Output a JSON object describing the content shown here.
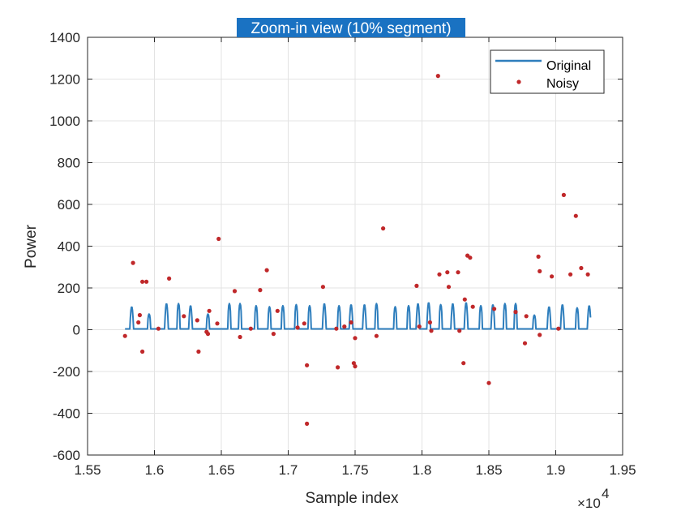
{
  "chart_data": {
    "type": "line",
    "title": "Zoom-in view (10% segment)",
    "xlabel": "Sample index",
    "ylabel": "Power",
    "x_exponent_label": "×10",
    "x_exponent_power": "4",
    "xlim": [
      15500,
      19500
    ],
    "ylim": [
      -600,
      1400
    ],
    "xticks": [
      15500,
      16000,
      16500,
      17000,
      17500,
      18000,
      18500,
      19000,
      19500
    ],
    "xtick_labels": [
      "1.55",
      "1.6",
      "1.65",
      "1.7",
      "1.75",
      "1.8",
      "1.85",
      "1.9",
      "1.95"
    ],
    "yticks": [
      -600,
      -400,
      -200,
      0,
      200,
      400,
      600,
      800,
      1000,
      1200,
      1400
    ],
    "ytick_labels": [
      "-600",
      "-400",
      "-200",
      "0",
      "200",
      "400",
      "600",
      "800",
      "1000",
      "1200",
      "1400"
    ],
    "grid": true,
    "legend_position": "top-right",
    "series": [
      {
        "name": "Original",
        "kind": "line",
        "color": "#2e7ebd",
        "x_start": 15780,
        "x_end": 19260,
        "peaks": [
          {
            "x": 15830,
            "y": 110
          },
          {
            "x": 15960,
            "y": 75
          },
          {
            "x": 16090,
            "y": 125
          },
          {
            "x": 16180,
            "y": 125
          },
          {
            "x": 16270,
            "y": 115
          },
          {
            "x": 16400,
            "y": 75
          },
          {
            "x": 16560,
            "y": 125
          },
          {
            "x": 16640,
            "y": 125
          },
          {
            "x": 16760,
            "y": 115
          },
          {
            "x": 16860,
            "y": 110
          },
          {
            "x": 16960,
            "y": 115
          },
          {
            "x": 17060,
            "y": 120
          },
          {
            "x": 17160,
            "y": 115
          },
          {
            "x": 17270,
            "y": 125
          },
          {
            "x": 17380,
            "y": 115
          },
          {
            "x": 17470,
            "y": 120
          },
          {
            "x": 17570,
            "y": 120
          },
          {
            "x": 17660,
            "y": 125
          },
          {
            "x": 17800,
            "y": 110
          },
          {
            "x": 17900,
            "y": 115
          },
          {
            "x": 17970,
            "y": 125
          },
          {
            "x": 18050,
            "y": 130
          },
          {
            "x": 18140,
            "y": 120
          },
          {
            "x": 18230,
            "y": 125
          },
          {
            "x": 18330,
            "y": 130
          },
          {
            "x": 18440,
            "y": 115
          },
          {
            "x": 18530,
            "y": 120
          },
          {
            "x": 18620,
            "y": 125
          },
          {
            "x": 18700,
            "y": 125
          },
          {
            "x": 18840,
            "y": 70
          },
          {
            "x": 18950,
            "y": 110
          },
          {
            "x": 19050,
            "y": 120
          },
          {
            "x": 19160,
            "y": 105
          },
          {
            "x": 19250,
            "y": 115
          }
        ]
      },
      {
        "name": "Noisy",
        "kind": "scatter",
        "color": "#c0282a",
        "points": [
          {
            "x": 15780,
            "y": -30
          },
          {
            "x": 15840,
            "y": 320
          },
          {
            "x": 15880,
            "y": 35
          },
          {
            "x": 15890,
            "y": 70
          },
          {
            "x": 15910,
            "y": -105
          },
          {
            "x": 15910,
            "y": 230
          },
          {
            "x": 15940,
            "y": 230
          },
          {
            "x": 16030,
            "y": 5
          },
          {
            "x": 16110,
            "y": 245
          },
          {
            "x": 16220,
            "y": 65
          },
          {
            "x": 16320,
            "y": 45
          },
          {
            "x": 16330,
            "y": -105
          },
          {
            "x": 16390,
            "y": -10
          },
          {
            "x": 16400,
            "y": -20
          },
          {
            "x": 16410,
            "y": 90
          },
          {
            "x": 16470,
            "y": 30
          },
          {
            "x": 16480,
            "y": 435
          },
          {
            "x": 16600,
            "y": 185
          },
          {
            "x": 16640,
            "y": -35
          },
          {
            "x": 16720,
            "y": 5
          },
          {
            "x": 16790,
            "y": 190
          },
          {
            "x": 16840,
            "y": 285
          },
          {
            "x": 16890,
            "y": -20
          },
          {
            "x": 16920,
            "y": 90
          },
          {
            "x": 17070,
            "y": 10
          },
          {
            "x": 17120,
            "y": 30
          },
          {
            "x": 17140,
            "y": -170
          },
          {
            "x": 17140,
            "y": -450
          },
          {
            "x": 17260,
            "y": 205
          },
          {
            "x": 17360,
            "y": 5
          },
          {
            "x": 17370,
            "y": -180
          },
          {
            "x": 17420,
            "y": 15
          },
          {
            "x": 17470,
            "y": 35
          },
          {
            "x": 17490,
            "y": -160
          },
          {
            "x": 17500,
            "y": -40
          },
          {
            "x": 17500,
            "y": -175
          },
          {
            "x": 17660,
            "y": -30
          },
          {
            "x": 17710,
            "y": 485
          },
          {
            "x": 17960,
            "y": 210
          },
          {
            "x": 17980,
            "y": 15
          },
          {
            "x": 18060,
            "y": 35
          },
          {
            "x": 18070,
            "y": -5
          },
          {
            "x": 18120,
            "y": 1215
          },
          {
            "x": 18130,
            "y": 265
          },
          {
            "x": 18190,
            "y": 275
          },
          {
            "x": 18200,
            "y": 205
          },
          {
            "x": 18270,
            "y": 275
          },
          {
            "x": 18280,
            "y": -5
          },
          {
            "x": 18310,
            "y": -160
          },
          {
            "x": 18320,
            "y": 145
          },
          {
            "x": 18340,
            "y": 355
          },
          {
            "x": 18360,
            "y": 345
          },
          {
            "x": 18380,
            "y": 110
          },
          {
            "x": 18500,
            "y": -255
          },
          {
            "x": 18540,
            "y": 100
          },
          {
            "x": 18700,
            "y": 85
          },
          {
            "x": 18770,
            "y": -65
          },
          {
            "x": 18780,
            "y": 65
          },
          {
            "x": 18870,
            "y": 350
          },
          {
            "x": 18880,
            "y": 280
          },
          {
            "x": 18880,
            "y": -25
          },
          {
            "x": 18970,
            "y": 255
          },
          {
            "x": 19020,
            "y": 5
          },
          {
            "x": 19060,
            "y": 645
          },
          {
            "x": 19110,
            "y": 265
          },
          {
            "x": 19150,
            "y": 545
          },
          {
            "x": 19190,
            "y": 295
          },
          {
            "x": 19240,
            "y": 265
          }
        ]
      }
    ]
  }
}
